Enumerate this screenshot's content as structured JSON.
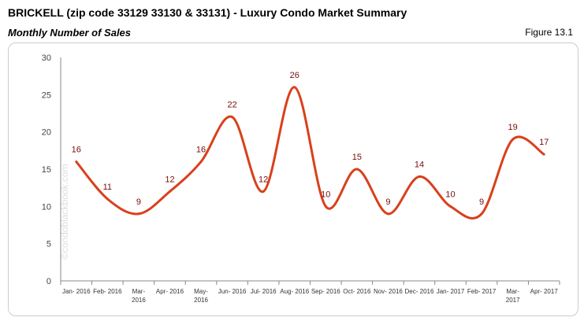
{
  "header": {
    "title": "BRICKELL (zip code 33129 33130 & 33131) - Luxury Condo Market Summary",
    "subtitle": "Monthly Number of Sales",
    "figure": "Figure 13.1"
  },
  "watermark": "©condoblackbook.com",
  "chart_data": {
    "type": "line",
    "categories": [
      "Jan- 2016",
      "Feb- 2016",
      "Mar- 2016",
      "Apr- 2016",
      "May- 2016",
      "Jun- 2016",
      "Jul- 2016",
      "Aug- 2016",
      "Sep- 2016",
      "Oct- 2016",
      "Nov- 2016",
      "Dec- 2016",
      "Jan- 2017",
      "Feb- 2017",
      "Mar- 2017",
      "Apr- 2017"
    ],
    "values": [
      16,
      11,
      9,
      12,
      16,
      22,
      12,
      26,
      10,
      15,
      9,
      14,
      10,
      9,
      19,
      17
    ],
    "ylim": [
      0,
      30
    ],
    "yticks": [
      0,
      5,
      10,
      15,
      20,
      25,
      30
    ],
    "line_color": "#d9401c",
    "label_color": "#7a0c0c",
    "grid": false,
    "smooth": true
  }
}
